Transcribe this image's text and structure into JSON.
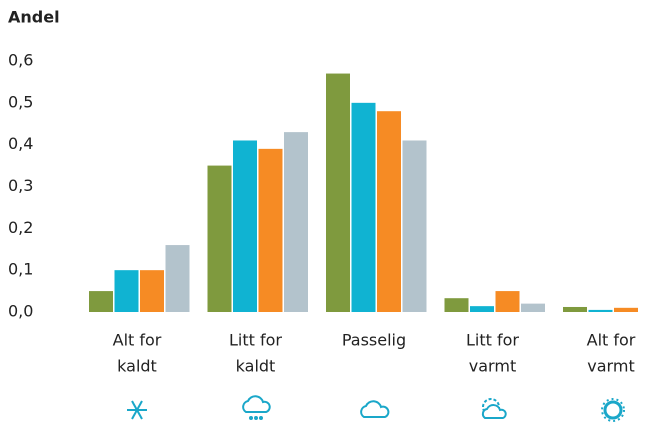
{
  "chart_data": {
    "type": "bar",
    "y_label": "Andel",
    "categories": [
      [
        "Alt for",
        "kaldt"
      ],
      [
        "Litt for",
        "kaldt"
      ],
      [
        "Passelig"
      ],
      [
        "Litt for",
        "varmt"
      ],
      [
        "Alt for",
        "varmt"
      ]
    ],
    "series": [
      {
        "color": "#7f9a3e",
        "values": [
          0.05,
          0.35,
          0.57,
          0.033,
          0.012
        ]
      },
      {
        "color": "#10b3d2",
        "values": [
          0.1,
          0.41,
          0.5,
          0.014,
          0.005
        ]
      },
      {
        "color": "#f68b24",
        "values": [
          0.1,
          0.39,
          0.48,
          0.05,
          0.01
        ]
      },
      {
        "color": "#b3c3cc",
        "values": [
          0.16,
          0.43,
          0.41,
          0.02,
          0
        ]
      }
    ],
    "ylim": [
      0,
      0.6
    ],
    "yticks": [
      {
        "value": 0,
        "label": "0,0"
      },
      {
        "value": 0.1,
        "label": "0,1"
      },
      {
        "value": 0.2,
        "label": "0,2"
      },
      {
        "value": 0.3,
        "label": "0,3"
      },
      {
        "value": 0.4,
        "label": "0,4"
      },
      {
        "value": 0.5,
        "label": "0,5"
      },
      {
        "value": 0.6,
        "label": "0,6"
      }
    ]
  }
}
